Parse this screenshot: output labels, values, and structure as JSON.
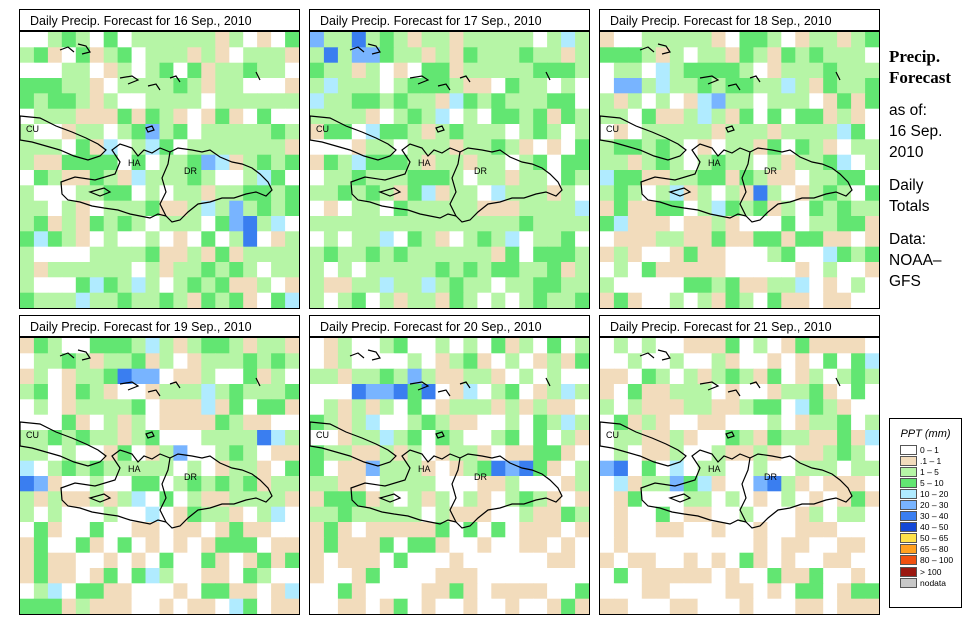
{
  "panels": [
    {
      "title": "Daily Precip. Forecast for  16 Sep., 2010",
      "seed": 11,
      "wet": 0.62,
      "blue": [
        "9,6",
        "13,8",
        "15,11",
        "15,12",
        "16,13",
        "16,12",
        "21,9"
      ]
    },
    {
      "title": "Daily Precip. Forecast for  17 Sep., 2010",
      "seed": 23,
      "wet": 0.78,
      "blue": [
        "0,0",
        "1,1",
        "3,0",
        "3,1",
        "4,1"
      ]
    },
    {
      "title": "Daily Precip. Forecast for  18 Sep., 2010",
      "seed": 37,
      "wet": 0.72,
      "blue": [
        "1,3",
        "2,3",
        "8,4",
        "11,10"
      ]
    },
    {
      "title": "Daily Precip. Forecast for  19 Sep., 2010",
      "seed": 41,
      "wet": 0.58,
      "blue": [
        "0,9",
        "1,9",
        "7,2",
        "8,2",
        "9,2",
        "11,7",
        "17,6"
      ]
    },
    {
      "title": "Daily Precip. Forecast for  20 Sep., 2010",
      "seed": 53,
      "wet": 0.5,
      "blue": [
        "3,3",
        "4,3",
        "5,3",
        "6,3",
        "7,2",
        "8,3",
        "4,8",
        "13,8",
        "14,8",
        "15,8"
      ]
    },
    {
      "title": "Daily Precip. Forecast for  21 Sep., 2010",
      "seed": 67,
      "wet": 0.4,
      "blue": [
        "0,8",
        "1,8",
        "5,9",
        "11,9",
        "12,9"
      ]
    }
  ],
  "map_labels": {
    "cuba": "CU",
    "haiti": "HA",
    "dr": "DR"
  },
  "side_panel": {
    "title_line1": "Precip.",
    "title_line2": "Forecast",
    "asof_line1": "as of:",
    "asof_line2": "16 Sep.",
    "asof_line3": "2010",
    "totals_line1": "Daily",
    "totals_line2": "Totals",
    "data_line1": "Data:",
    "data_line2": "NOAA–",
    "data_line3": "GFS"
  },
  "legend": {
    "title": "PPT (mm)",
    "items": [
      {
        "label": "0 – 1",
        "color": "#ffffff"
      },
      {
        "label": ".1 – 1",
        "color": "#f2dcbc"
      },
      {
        "label": "1 – 5",
        "color": "#b6f5a6"
      },
      {
        "label": "5 – 10",
        "color": "#62e672"
      },
      {
        "label": "10 – 20",
        "color": "#b0ebff"
      },
      {
        "label": "20 – 30",
        "color": "#78b4ff"
      },
      {
        "label": "30 – 40",
        "color": "#3a7ef0"
      },
      {
        "label": "40 – 50",
        "color": "#1448d6"
      },
      {
        "label": "50 – 65",
        "color": "#ffe24a"
      },
      {
        "label": "65 – 80",
        "color": "#ffa020"
      },
      {
        "label": "80 – 100",
        "color": "#f05010"
      },
      {
        "label": "> 100",
        "color": "#9a1810"
      },
      {
        "label": "nodata",
        "color": "#c8c8c8"
      }
    ]
  }
}
